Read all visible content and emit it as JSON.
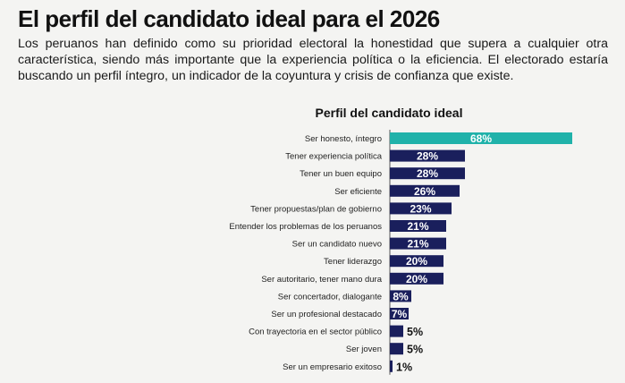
{
  "header": {
    "title": "El perfil del candidato ideal para el 2026",
    "description": "Los peruanos han definido como su prioridad electoral la honestidad que supera a cualquier otra característica, siendo más importante que la experiencia política o la eficiencia. El electorado estaría buscando un perfil íntegro, un indicador de la coyuntura y crisis de confianza que existe."
  },
  "colors": {
    "highlight": "#20b2aa",
    "bar": "#1a1f5c",
    "background": "#f4f4f2"
  },
  "chart_data": {
    "type": "bar",
    "orientation": "horizontal",
    "title": "Perfil del candidato ideal",
    "xlabel": "",
    "ylabel": "",
    "xlim": [
      0,
      100
    ],
    "grid": false,
    "legend": "none",
    "categories": [
      "Ser honesto, íntegro",
      "Tener experiencia política",
      "Tener un buen equipo",
      "Ser eficiente",
      "Tener propuestas/plan de gobierno",
      "Entender los problemas de los peruanos",
      "Ser un candidato nuevo",
      "Tener liderazgo",
      "Ser autoritario, tener mano dura",
      "Ser concertador, dialogante",
      "Ser un profesional destacado",
      "Con trayectoria en el sector público",
      "Ser joven",
      "Ser un empresario exitoso"
    ],
    "values": [
      68,
      28,
      28,
      26,
      23,
      21,
      21,
      20,
      20,
      8,
      7,
      5,
      5,
      1
    ],
    "labels": [
      "68%",
      "28%",
      "28%",
      "26%",
      "23%",
      "21%",
      "21%",
      "20%",
      "20%",
      "8%",
      "7%",
      "5%",
      "5%",
      "1%"
    ],
    "highlighted_index": 0
  }
}
